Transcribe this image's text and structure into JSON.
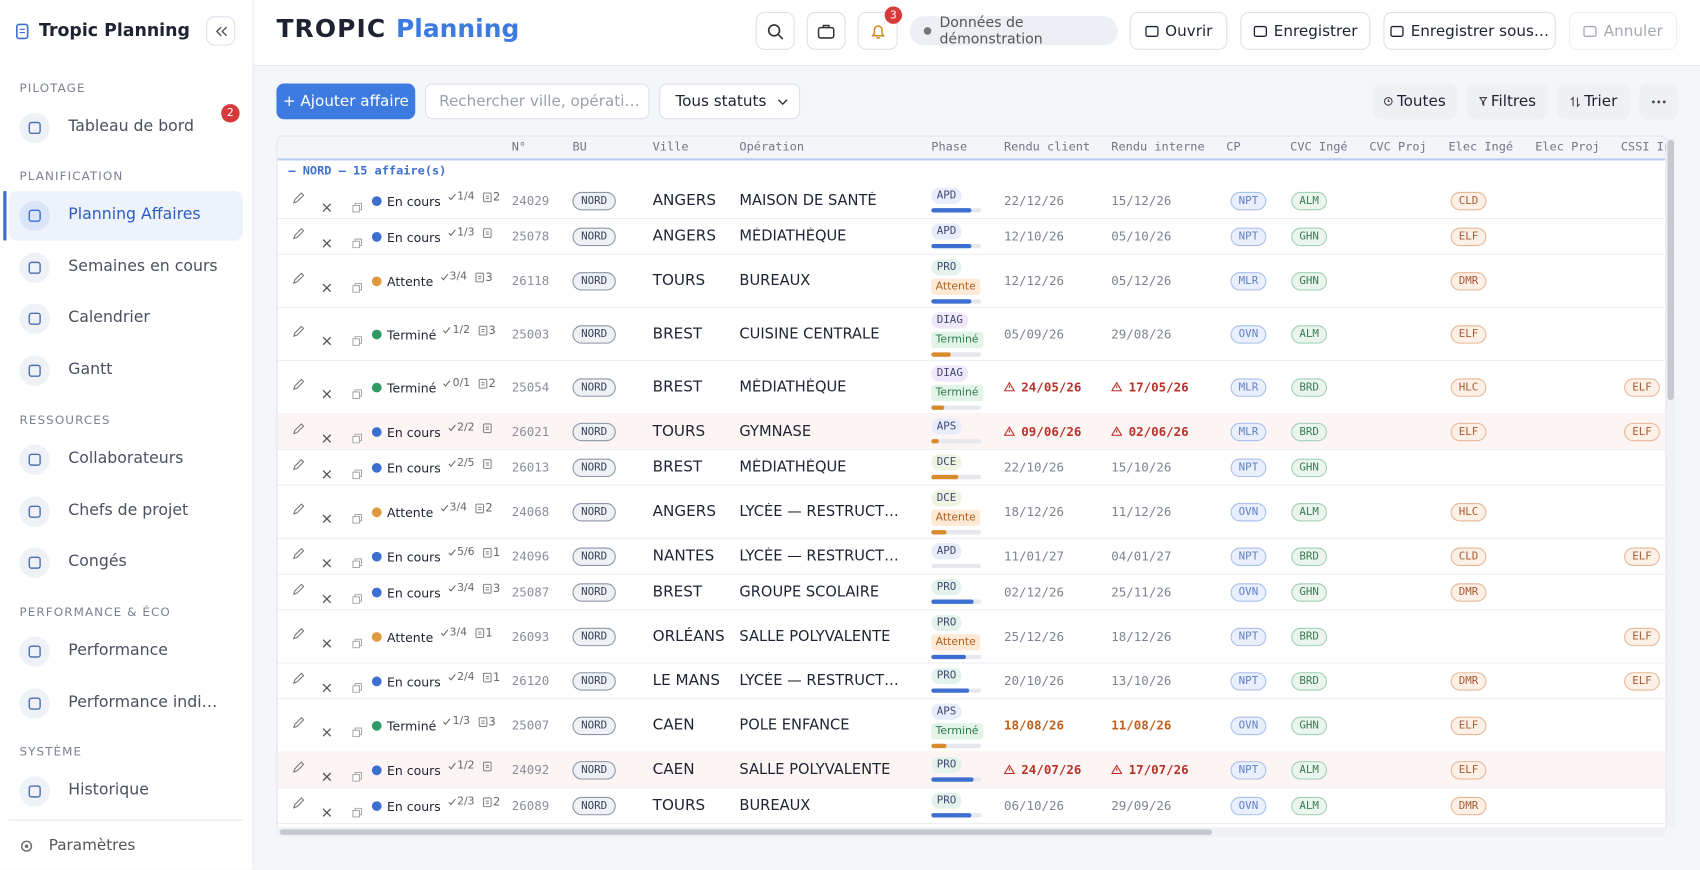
{
  "sidebar": {
    "title": "Tropic Planning",
    "sections": [
      {
        "label": "PILOTAGE",
        "items": [
          {
            "label": "Tableau de bord",
            "badge": 2
          }
        ]
      },
      {
        "label": "PLANIFICATION",
        "items": [
          {
            "label": "Planning Affaires",
            "active": true
          },
          {
            "label": "Semaines en cours"
          },
          {
            "label": "Calendrier"
          },
          {
            "label": "Gantt"
          }
        ]
      },
      {
        "label": "RESSOURCES",
        "items": [
          {
            "label": "Collaborateurs"
          },
          {
            "label": "Chefs de projet"
          },
          {
            "label": "Congés"
          }
        ]
      },
      {
        "label": "PERFORMANCE & ÉCO",
        "items": [
          {
            "label": "Performance"
          },
          {
            "label": "Performance individuelle"
          }
        ]
      },
      {
        "label": "SYSTÈME",
        "items": [
          {
            "label": "Historique"
          }
        ]
      }
    ],
    "footer": "Paramètres"
  },
  "header": {
    "logo": "TROPIC",
    "logo_accent": "Planning",
    "notifications": 3,
    "demo": "Données de démonstration",
    "buttons": [
      "Ouvrir",
      "Enregistrer",
      "Enregistrer sous…",
      "Annuler"
    ]
  },
  "toolbar": {
    "add": "+ Ajouter affaire",
    "search_placeholder": "Rechercher ville, opération, N°.",
    "status_filter": "Tous statuts",
    "scope": "Toutes",
    "filters": "Filtres",
    "sort": "Trier"
  },
  "status_colors": {
    "En cours": "#3d6fd1",
    "Attente": "#de9a3c",
    "Terminé": "#2f9a66"
  },
  "phase_colors": {
    "APD": "#e9ecfb",
    "APS": "#e9ecfb",
    "PRO": "#e3f3ec",
    "DIAG": "#efe7fa",
    "DCE": "#eef3e2"
  },
  "table": {
    "columns": [
      "N°",
      "BU",
      "Ville",
      "Opération",
      "Phase",
      "Rendu client",
      "Rendu interne",
      "CP",
      "CVC Ingé",
      "CVC Proj",
      "Elec Ingé",
      "Elec Proj",
      "CSSI Ingé"
    ],
    "group": "— NORD — 15 affaire(s)",
    "rows": [
      {
        "status": "En cours",
        "tasks": "1/4",
        "docs": 2,
        "num": 24029,
        "bu": "NORD",
        "ville": "ANGERS",
        "operation": "MAISON DE SANTÉ",
        "phase": "APD",
        "progress": 80,
        "progress_color": "#3d6fd1",
        "client": "22/12/26",
        "interne": "15/12/26",
        "cp": "NPT",
        "cvc_inge": "ALM",
        "elec_inge": "CLD"
      },
      {
        "status": "En cours",
        "tasks": "1/3",
        "num": 25078,
        "bu": "NORD",
        "ville": "ANGERS",
        "operation": "MÉDIATHÈQUE",
        "phase": "APD",
        "progress": 80,
        "progress_color": "#3d6fd1",
        "client": "12/10/26",
        "interne": "05/10/26",
        "cp": "NPT",
        "cvc_inge": "GHN",
        "elec_inge": "ELF"
      },
      {
        "status": "Attente",
        "tasks": "3/4",
        "docs": 3,
        "num": 26118,
        "bu": "NORD",
        "ville": "TOURS",
        "operation": "BUREAUX",
        "phase": "PRO",
        "phase_status": "Attente",
        "progress": 80,
        "progress_color": "#3d6fd1",
        "client": "12/12/26",
        "interne": "05/12/26",
        "cp": "MLR",
        "cvc_inge": "GHN",
        "elec_inge": "DMR"
      },
      {
        "status": "Terminé",
        "tasks": "1/2",
        "docs": 3,
        "num": 25003,
        "bu": "NORD",
        "ville": "BREST",
        "operation": "CUISINE CENTRALE",
        "phase": "DIAG",
        "phase_status": "Terminé",
        "progress": 40,
        "progress_color": "#d98a2c",
        "client": "05/09/26",
        "interne": "29/08/26",
        "cp": "OVN",
        "cvc_inge": "ALM",
        "elec_inge": "ELF"
      },
      {
        "status": "Terminé",
        "tasks": "0/1",
        "docs": 2,
        "num": 25054,
        "bu": "NORD",
        "ville": "BREST",
        "operation": "MÉDIATHÈQUE",
        "phase": "DIAG",
        "phase_status": "Terminé",
        "progress": 25,
        "progress_color": "#d98a2c",
        "client": "24/05/26",
        "interne": "17/05/26",
        "warning": true,
        "date_color": "#b8322a",
        "cp": "MLR",
        "cvc_inge": "BRD",
        "elec_inge": "HLC",
        "cssi": "ELF"
      },
      {
        "status": "En cours",
        "tasks": "2/2",
        "num": 26021,
        "bu": "NORD",
        "ville": "TOURS",
        "operation": "GYMNASE",
        "phase": "APS",
        "progress": 15,
        "progress_color": "#d98a2c",
        "client": "09/06/26",
        "interne": "02/06/26",
        "warning": true,
        "date_color": "#b8322a",
        "highlight": true,
        "cp": "MLR",
        "cvc_inge": "BRD",
        "elec_inge": "ELF",
        "cssi": "ELF"
      },
      {
        "status": "En cours",
        "tasks": "2/5",
        "num": 26013,
        "bu": "NORD",
        "ville": "BREST",
        "operation": "MÉDIATHÈQUE",
        "phase": "DCE",
        "progress": 55,
        "progress_color": "#d98a2c",
        "client": "22/10/26",
        "interne": "15/10/26",
        "cp": "NPT",
        "cvc_inge": "GHN"
      },
      {
        "status": "Attente",
        "tasks": "3/4",
        "docs": 2,
        "num": 24068,
        "bu": "NORD",
        "ville": "ANGERS",
        "operation": "LYCÉE — RESTRUCTURA…",
        "phase": "DCE",
        "phase_status": "Attente",
        "progress": 30,
        "progress_color": "#d98a2c",
        "client": "18/12/26",
        "interne": "11/12/26",
        "cp": "OVN",
        "cvc_inge": "ALM",
        "elec_inge": "HLC"
      },
      {
        "status": "En cours",
        "tasks": "5/6",
        "docs": 1,
        "num": 24096,
        "bu": "NORD",
        "ville": "NANTES",
        "operation": "LYCÉE — RESTRUCTURA…",
        "phase": "APD",
        "progress": 0,
        "progress_color": "#3d6fd1",
        "client": "11/01/27",
        "interne": "04/01/27",
        "cp": "NPT",
        "cvc_inge": "BRD",
        "elec_inge": "CLD",
        "cssi": "ELF"
      },
      {
        "status": "En cours",
        "tasks": "3/4",
        "docs": 3,
        "num": 25087,
        "bu": "NORD",
        "ville": "BREST",
        "operation": "GROUPE SCOLAIRE",
        "phase": "PRO",
        "progress": 85,
        "progress_color": "#3d6fd1",
        "client": "02/12/26",
        "interne": "25/11/26",
        "cp": "OVN",
        "cvc_inge": "GHN",
        "elec_inge": "DMR"
      },
      {
        "status": "Attente",
        "tasks": "3/4",
        "docs": 1,
        "num": 26093,
        "bu": "NORD",
        "ville": "ORLÉANS",
        "operation": "SALLE POLYVALENTE",
        "phase": "PRO",
        "phase_status": "Attente",
        "progress": 70,
        "progress_color": "#3d6fd1",
        "client": "25/12/26",
        "interne": "18/12/26",
        "cp": "NPT",
        "cvc_inge": "BRD",
        "cssi": "ELF"
      },
      {
        "status": "En cours",
        "tasks": "2/4",
        "docs": 1,
        "num": 26120,
        "bu": "NORD",
        "ville": "LE MANS",
        "operation": "LYCÉE — RESTRUCTURA…",
        "phase": "PRO",
        "progress": 75,
        "progress_color": "#3d6fd1",
        "client": "20/10/26",
        "interne": "13/10/26",
        "cp": "NPT",
        "cvc_inge": "BRD",
        "elec_inge": "DMR",
        "cssi": "ELF"
      },
      {
        "status": "Terminé",
        "tasks": "1/3",
        "docs": 3,
        "num": 25007,
        "bu": "NORD",
        "ville": "CAEN",
        "operation": "POLE ENFANCE",
        "phase": "APS",
        "phase_status": "Terminé",
        "progress": 30,
        "progress_color": "#d98a2c",
        "client": "18/08/26",
        "interne": "11/08/26",
        "date_color": "#c0601c",
        "cp": "OVN",
        "cvc_inge": "GHN",
        "elec_inge": "ELF"
      },
      {
        "status": "En cours",
        "tasks": "1/2",
        "num": 24092,
        "bu": "NORD",
        "ville": "CAEN",
        "operation": "SALLE POLYVALENTE",
        "phase": "PRO",
        "progress": 85,
        "progress_color": "#3d6fd1",
        "client": "24/07/26",
        "interne": "17/07/26",
        "warning": true,
        "date_color": "#b8322a",
        "highlight": true,
        "cp": "NPT",
        "cvc_inge": "ALM",
        "elec_inge": "ELF"
      },
      {
        "status": "En cours",
        "tasks": "2/3",
        "docs": 2,
        "num": 26089,
        "bu": "NORD",
        "ville": "TOURS",
        "operation": "BUREAUX",
        "phase": "PRO",
        "progress": 80,
        "progress_color": "#3d6fd1",
        "client": "06/10/26",
        "interne": "29/09/26",
        "cp": "OVN",
        "cvc_inge": "ALM",
        "elec_inge": "DMR"
      }
    ]
  }
}
